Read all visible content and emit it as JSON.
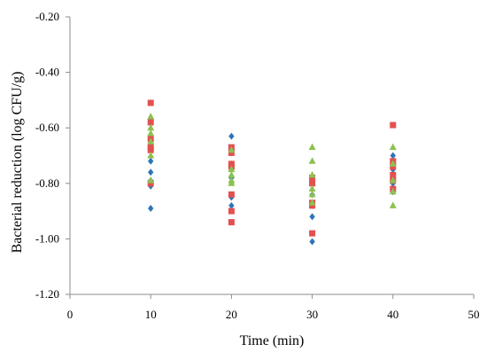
{
  "chart_data": {
    "type": "scatter",
    "title": "",
    "xlabel": "Time (min)",
    "ylabel": "Bacterial reduction (log CFU/g)",
    "xlim": [
      0,
      50
    ],
    "ylim": [
      -1.2,
      -0.2
    ],
    "xticks": [
      0,
      10,
      20,
      30,
      40,
      50
    ],
    "yticks": [
      -1.2,
      -1.0,
      -0.8,
      -0.6,
      -0.4,
      -0.2
    ],
    "xtick_labels": [
      "0",
      "10",
      "20",
      "30",
      "40",
      "50"
    ],
    "ytick_labels": [
      "-1.20",
      "-1.00",
      "-0.80",
      "-0.60",
      "-0.40",
      "-0.20"
    ],
    "grid": false,
    "legend": "none",
    "series": [
      {
        "marker": "diamond",
        "color": "#2e75b6",
        "x": [
          10,
          10,
          10,
          10,
          10,
          10,
          10,
          20,
          20,
          20,
          20,
          20,
          20,
          30,
          30,
          30,
          30,
          30,
          40,
          40,
          40,
          40,
          40
        ],
        "y": [
          -0.58,
          -0.67,
          -0.72,
          -0.76,
          -0.79,
          -0.81,
          -0.89,
          -0.63,
          -0.69,
          -0.73,
          -0.78,
          -0.85,
          -0.88,
          -0.79,
          -0.84,
          -0.88,
          -0.92,
          -1.01,
          -0.7,
          -0.75,
          -0.78,
          -0.8,
          -0.83
        ]
      },
      {
        "marker": "square",
        "color": "#e35050",
        "x": [
          10,
          10,
          10,
          10,
          10,
          10,
          20,
          20,
          20,
          20,
          20,
          20,
          20,
          30,
          30,
          30,
          30,
          30,
          40,
          40,
          40,
          40,
          40,
          40
        ],
        "y": [
          -0.51,
          -0.58,
          -0.64,
          -0.67,
          -0.68,
          -0.8,
          -0.67,
          -0.69,
          -0.73,
          -0.74,
          -0.84,
          -0.9,
          -0.94,
          -0.78,
          -0.8,
          -0.87,
          -0.88,
          -0.98,
          -0.59,
          -0.72,
          -0.74,
          -0.77,
          -0.79,
          -0.82
        ]
      },
      {
        "marker": "triangle",
        "color": "#8cc152",
        "x": [
          10,
          10,
          10,
          10,
          10,
          10,
          20,
          20,
          20,
          20,
          20,
          30,
          30,
          30,
          30,
          30,
          30,
          40,
          40,
          40,
          40,
          40
        ],
        "y": [
          -0.56,
          -0.6,
          -0.62,
          -0.65,
          -0.7,
          -0.79,
          -0.68,
          -0.75,
          -0.77,
          -0.79,
          -0.8,
          -0.67,
          -0.72,
          -0.77,
          -0.82,
          -0.84,
          -0.87,
          -0.67,
          -0.73,
          -0.79,
          -0.83,
          -0.88
        ]
      }
    ]
  }
}
